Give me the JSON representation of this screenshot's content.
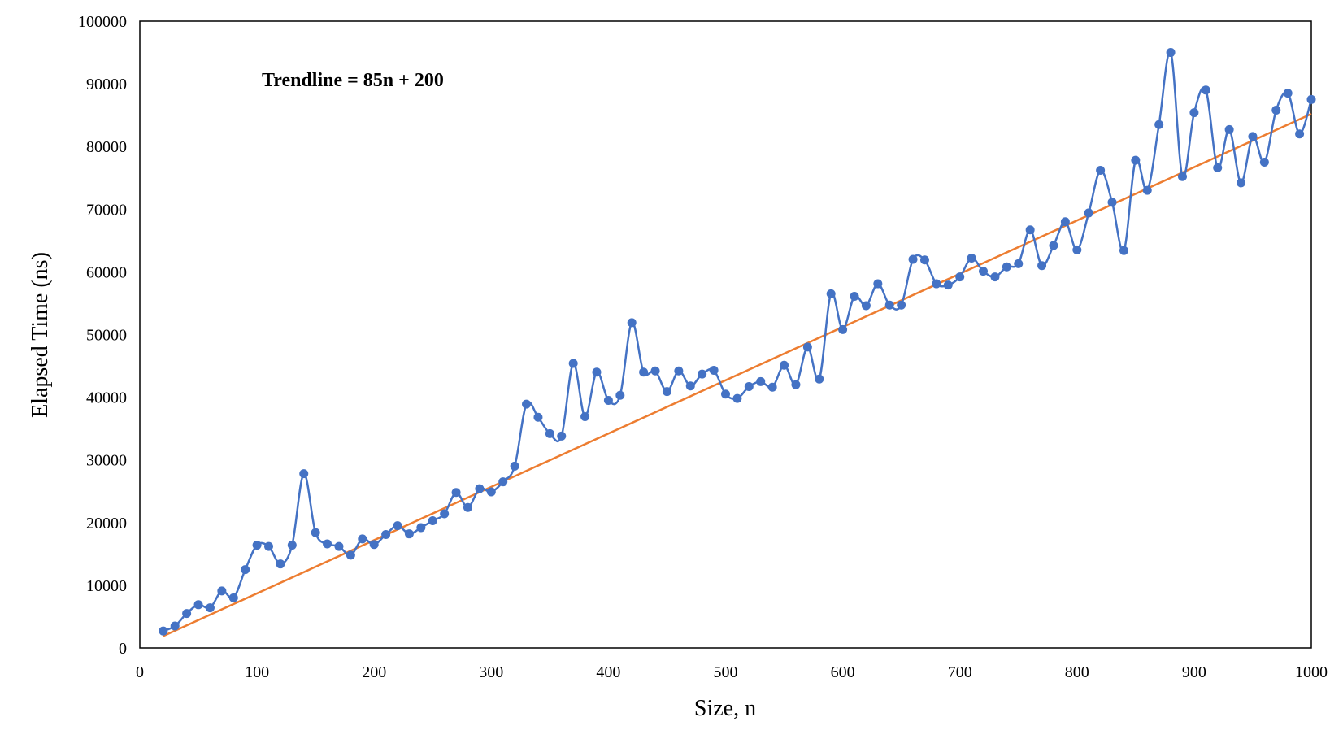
{
  "chart_data": {
    "type": "line",
    "title": "",
    "xlabel": "Size, n",
    "ylabel": "Elapsed Time (ns)",
    "xlim": [
      0,
      1000
    ],
    "ylim": [
      0,
      100000
    ],
    "xticks": [
      0,
      100,
      200,
      300,
      400,
      500,
      600,
      700,
      800,
      900,
      1000
    ],
    "yticks": [
      0,
      10000,
      20000,
      30000,
      40000,
      50000,
      60000,
      70000,
      80000,
      90000,
      100000
    ],
    "grid": false,
    "legend": "none",
    "annotation": "Trendline = 85n + 200",
    "series": [
      {
        "kind": "line-markers",
        "color": "#4472C4",
        "x": [
          20,
          30,
          40,
          50,
          60,
          70,
          80,
          90,
          100,
          110,
          120,
          130,
          140,
          150,
          160,
          170,
          180,
          190,
          200,
          210,
          220,
          230,
          240,
          250,
          260,
          270,
          280,
          290,
          300,
          310,
          320,
          330,
          340,
          350,
          360,
          370,
          380,
          390,
          400,
          410,
          420,
          430,
          440,
          450,
          460,
          470,
          480,
          490,
          500,
          510,
          520,
          530,
          540,
          550,
          560,
          570,
          580,
          590,
          600,
          610,
          620,
          630,
          640,
          650,
          660,
          670,
          680,
          690,
          700,
          710,
          720,
          730,
          740,
          750,
          760,
          770,
          780,
          790,
          800,
          810,
          820,
          830,
          840,
          850,
          860,
          870,
          880,
          890,
          900,
          910,
          920,
          930,
          940,
          950,
          960,
          970,
          980,
          990,
          1000
        ],
        "y": [
          2700,
          3500,
          5500,
          6900,
          6400,
          9100,
          8000,
          12500,
          16400,
          16200,
          13400,
          16400,
          27800,
          18400,
          16600,
          16200,
          14800,
          17400,
          16500,
          18100,
          19500,
          18200,
          19200,
          20300,
          21400,
          24800,
          22400,
          25400,
          24900,
          26500,
          29000,
          38900,
          36800,
          34200,
          33800,
          45400,
          36900,
          44000,
          39500,
          40300,
          51900,
          44000,
          44200,
          40900,
          44200,
          41800,
          43700,
          44300,
          40500,
          39800,
          41700,
          42500,
          41600,
          45100,
          42000,
          48000,
          42900,
          56500,
          50800,
          56100,
          54600,
          58100,
          54700,
          54700,
          62000,
          61900,
          58100,
          57900,
          59200,
          62200,
          60100,
          59200,
          60800,
          61300,
          66700,
          61000,
          64200,
          68000,
          63500,
          69400,
          76200,
          71100,
          63400,
          77800,
          73000,
          83500,
          95000,
          75200,
          85400,
          89000,
          76600,
          82700,
          74200,
          81600,
          77500,
          85800,
          88500,
          82000,
          87500
        ]
      },
      {
        "kind": "trendline",
        "color": "#ED7D31",
        "x": [
          20,
          1000
        ],
        "y": [
          1900,
          85200
        ]
      }
    ]
  }
}
